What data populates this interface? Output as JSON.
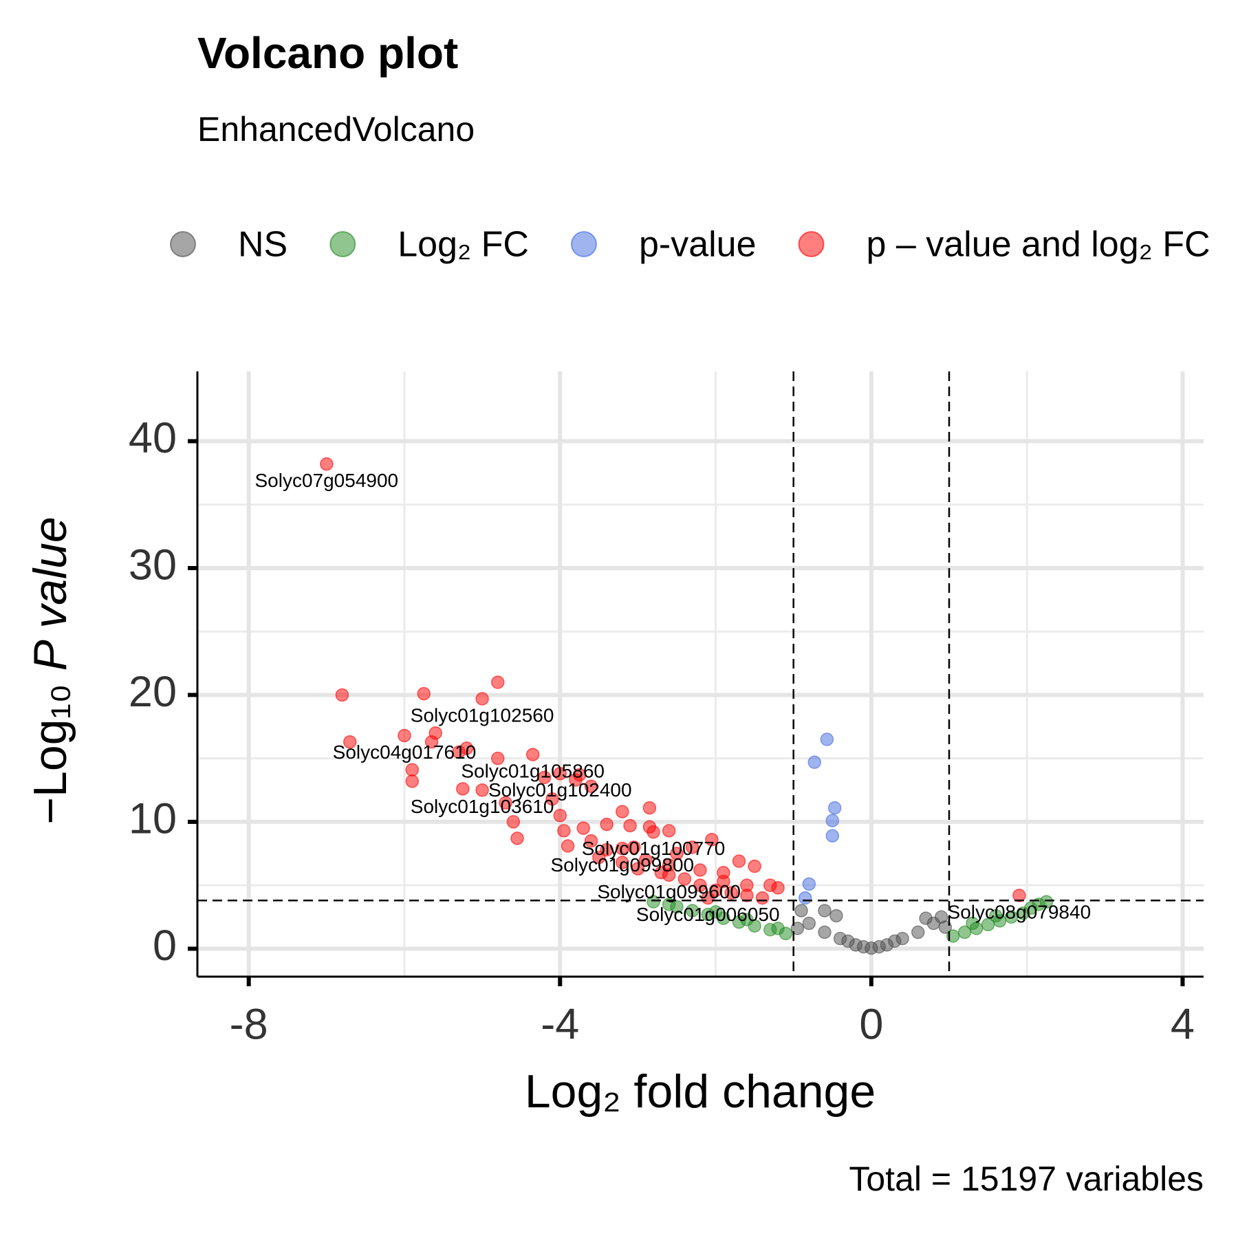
{
  "chart_data": {
    "type": "scatter",
    "title": "Volcano plot",
    "subtitle": "EnhancedVolcano",
    "caption": "Total = 15197 variables",
    "xlabel": "Log₂ fold change",
    "ylabel": [
      "−Log₁₀",
      "P value"
    ],
    "xlim": [
      -8.66,
      4.27
    ],
    "ylim": [
      -2.2,
      45.5
    ],
    "xticks": [
      -8,
      -4,
      0,
      4
    ],
    "yticks": [
      0,
      10,
      20,
      30,
      40
    ],
    "xminor": [
      -6,
      -2,
      2
    ],
    "yminor": [
      5,
      15,
      25,
      35
    ],
    "grid": true,
    "vlines": [
      -1,
      1
    ],
    "hline": 3.8,
    "legend": "top",
    "series": [
      {
        "name": "NS",
        "color": "#4d4d4d",
        "x": [
          -0.9,
          -0.6,
          -0.45,
          -0.8,
          -0.6,
          -0.4,
          -0.2,
          0,
          0.2,
          0.4,
          0.6,
          0.8,
          0.9,
          0.7,
          -0.95,
          0.95,
          0.1,
          -0.1,
          0.3,
          -0.3
        ],
        "values": [
          3.0,
          3.0,
          2.6,
          2.0,
          1.3,
          0.8,
          0.3,
          0.05,
          0.3,
          0.8,
          1.3,
          2.0,
          2.5,
          2.4,
          1.6,
          1.7,
          0.15,
          0.15,
          0.6,
          0.6
        ]
      },
      {
        "name": "Log₂ FC",
        "color": "#228b22",
        "x": [
          -2.8,
          -2.5,
          -2.3,
          -2.1,
          -1.9,
          -1.7,
          -1.5,
          -1.3,
          -1.1,
          -2.6,
          -2.0,
          -1.6,
          -1.2,
          1.05,
          1.2,
          1.35,
          1.5,
          1.65,
          1.8,
          1.95,
          2.05,
          2.15,
          2.25,
          1.3,
          1.6
        ],
        "values": [
          3.7,
          3.3,
          3.0,
          2.7,
          2.4,
          2.1,
          1.8,
          1.5,
          1.2,
          3.5,
          2.9,
          2.3,
          1.6,
          1.0,
          1.3,
          1.6,
          1.9,
          2.2,
          2.5,
          2.8,
          3.2,
          3.5,
          3.7,
          2.0,
          2.6
        ]
      },
      {
        "name": "p-value",
        "color": "#4169e1",
        "x": [
          -0.57,
          -0.73,
          -0.47,
          -0.5,
          -0.5,
          -0.8,
          -0.85
        ],
        "values": [
          16.5,
          14.7,
          11.1,
          10.1,
          8.9,
          5.1,
          4.0
        ]
      },
      {
        "name": "p – value and log₂ FC",
        "color": "#ff0000",
        "x": [
          -7.0,
          -6.8,
          -6.7,
          -6.0,
          -5.9,
          -5.9,
          -5.75,
          -5.6,
          -5.65,
          -5.3,
          -5.2,
          -5.25,
          -5.0,
          -5.0,
          -4.8,
          -4.8,
          -4.7,
          -4.6,
          -4.55,
          -4.35,
          -4.2,
          -4.1,
          -4.0,
          -3.95,
          -3.8,
          -3.75,
          -3.6,
          -3.7,
          -3.6,
          -3.4,
          -3.2,
          -3.1,
          -3.05,
          -2.85,
          -2.85,
          -2.8,
          -2.6,
          -2.5,
          -2.3,
          -2.05,
          -1.9,
          -1.7,
          -1.5,
          -1.3,
          -1.2,
          1.9,
          -3.5,
          -3.2,
          -3.0,
          -2.7,
          -2.4,
          -2.2,
          -2.0,
          -1.8,
          -1.6,
          -1.4,
          -3.9,
          -3.4,
          -2.9,
          -2.6,
          -2.2,
          -1.9,
          -1.6,
          -4.0,
          -3.2,
          -2.6,
          -2.1
        ],
        "values": [
          38.2,
          20.0,
          16.3,
          16.8,
          14.1,
          13.2,
          20.1,
          17.0,
          16.3,
          15.5,
          15.8,
          12.6,
          19.7,
          12.5,
          21.0,
          15.0,
          11.5,
          10.0,
          8.7,
          15.3,
          13.5,
          11.8,
          10.5,
          9.3,
          13.3,
          13.7,
          12.8,
          9.5,
          8.5,
          9.8,
          10.8,
          9.7,
          8.0,
          11.1,
          9.6,
          9.2,
          9.3,
          7.5,
          8.0,
          8.6,
          6.0,
          6.9,
          6.5,
          5.0,
          4.8,
          4.2,
          7.2,
          6.8,
          6.3,
          6.0,
          5.5,
          5.0,
          4.6,
          4.4,
          4.2,
          4.0,
          8.1,
          7.8,
          7.0,
          6.6,
          6.2,
          5.3,
          5.0,
          13.8,
          7.9,
          5.8,
          4.0
        ],
        "labels": [
          "Solyc07g054900",
          null,
          null,
          "Solyc04g017610",
          null,
          null,
          null,
          null,
          null,
          null,
          null,
          null,
          "Solyc01g102560",
          "Solyc01g103610",
          null,
          null,
          null,
          null,
          null,
          "Solyc01g105860",
          null,
          null,
          null,
          null,
          null,
          null,
          null,
          null,
          null,
          null,
          null,
          null,
          null,
          null,
          null,
          "Solyc01g100770",
          null,
          null,
          null,
          null,
          null,
          null,
          null,
          null,
          null,
          "Solyc08g079840",
          null,
          null,
          null,
          null,
          null,
          null,
          null,
          null,
          null,
          null,
          null,
          null,
          null,
          null,
          null,
          null,
          null,
          "Solyc01g102400",
          "Solyc01g099800",
          "Solyc01g099600",
          "Solyc01g006050"
        ]
      }
    ]
  }
}
